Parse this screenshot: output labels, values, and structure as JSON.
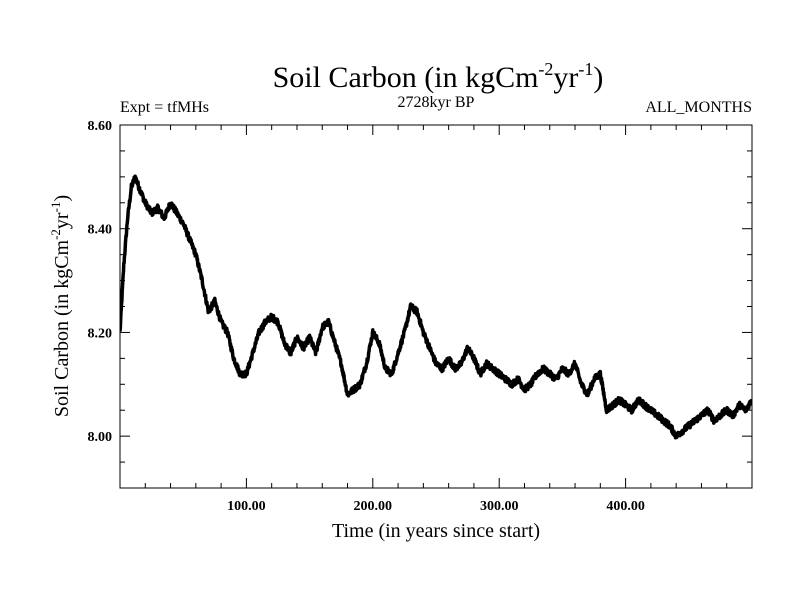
{
  "header": {
    "title_main": "Soil Carbon (in kgCm",
    "title_sup1": "-2",
    "title_mid": "yr",
    "title_sup2": "-1",
    "title_end": ")",
    "expt_label": "Expt = tfMHs",
    "period_label": "2728kyr BP",
    "months_label": "ALL_MONTHS"
  },
  "axes": {
    "xlabel": "Time (in years since start)",
    "ylabel_main": "Soil Carbon (in kgCm",
    "ylabel_sup1": "-2",
    "ylabel_mid": "yr",
    "ylabel_sup2": "-1",
    "ylabel_end": ")"
  },
  "chart_data": {
    "type": "line",
    "title": "Soil Carbon (in kgCm-2yr-1)",
    "xlabel": "Time (in years since start)",
    "ylabel": "Soil Carbon (in kgCm-2yr-1)",
    "xlim": [
      0,
      500
    ],
    "ylim": [
      7.9,
      8.6
    ],
    "xticks": [
      100,
      200,
      300,
      400
    ],
    "xtick_labels": [
      "100.00",
      "200.00",
      "300.00",
      "400.00"
    ],
    "yticks": [
      8.0,
      8.2,
      8.4,
      8.6
    ],
    "ytick_labels": [
      "8.00",
      "8.20",
      "8.40",
      "8.60"
    ],
    "series": [
      {
        "name": "Soil Carbon",
        "color": "#000000",
        "x": [
          0,
          3,
          6,
          9,
          12,
          15,
          20,
          25,
          30,
          35,
          40,
          45,
          50,
          55,
          60,
          65,
          70,
          75,
          80,
          85,
          90,
          95,
          100,
          105,
          110,
          115,
          120,
          125,
          130,
          135,
          140,
          145,
          150,
          155,
          160,
          165,
          170,
          175,
          180,
          185,
          190,
          195,
          200,
          205,
          210,
          215,
          220,
          225,
          230,
          235,
          240,
          245,
          250,
          255,
          260,
          265,
          270,
          275,
          280,
          285,
          290,
          295,
          300,
          305,
          310,
          315,
          320,
          325,
          330,
          335,
          340,
          345,
          350,
          355,
          360,
          365,
          370,
          375,
          380,
          385,
          390,
          395,
          400,
          405,
          410,
          415,
          420,
          425,
          430,
          435,
          440,
          445,
          450,
          455,
          460,
          465,
          470,
          475,
          480,
          485,
          490,
          495,
          500
        ],
        "values": [
          8.2,
          8.33,
          8.42,
          8.48,
          8.5,
          8.48,
          8.45,
          8.43,
          8.44,
          8.42,
          8.45,
          8.43,
          8.41,
          8.38,
          8.35,
          8.3,
          8.24,
          8.26,
          8.22,
          8.2,
          8.15,
          8.12,
          8.12,
          8.16,
          8.2,
          8.22,
          8.23,
          8.22,
          8.18,
          8.16,
          8.19,
          8.17,
          8.19,
          8.16,
          8.21,
          8.22,
          8.18,
          8.14,
          8.08,
          8.09,
          8.1,
          8.14,
          8.2,
          8.18,
          8.13,
          8.12,
          8.16,
          8.2,
          8.25,
          8.24,
          8.2,
          8.17,
          8.14,
          8.13,
          8.15,
          8.13,
          8.14,
          8.17,
          8.15,
          8.12,
          8.14,
          8.13,
          8.12,
          8.11,
          8.1,
          8.11,
          8.09,
          8.1,
          8.12,
          8.13,
          8.12,
          8.11,
          8.13,
          8.12,
          8.14,
          8.1,
          8.08,
          8.11,
          8.12,
          8.05,
          8.06,
          8.07,
          8.06,
          8.05,
          8.07,
          8.06,
          8.05,
          8.04,
          8.03,
          8.02,
          8.0,
          8.01,
          8.02,
          8.03,
          8.04,
          8.05,
          8.03,
          8.04,
          8.05,
          8.04,
          8.06,
          8.05,
          8.07
        ]
      }
    ]
  }
}
